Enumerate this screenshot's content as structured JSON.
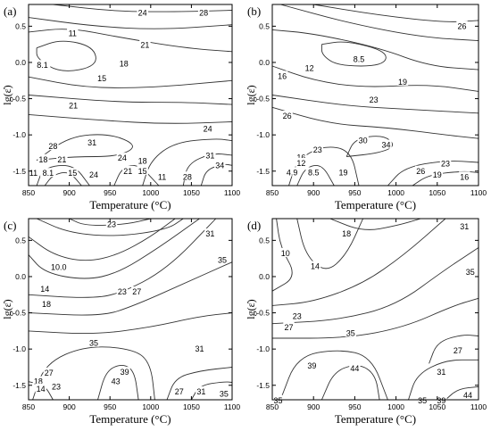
{
  "chart_data": [
    {
      "type": "contour",
      "panel_label": "(a)",
      "xlabel": "Temperature (°C)",
      "ylabel": "lg(ε̇)",
      "xlim": [
        850,
        1100
      ],
      "ylim": [
        -1.7,
        0.8
      ],
      "xticks": [
        "850",
        "900",
        "950",
        "1000",
        "1050",
        "1100"
      ],
      "yticks": [
        "-1.5",
        "-1.0",
        "-0.5",
        "0.0",
        "0.5"
      ],
      "contour_labels": [
        {
          "text": "24",
          "x": 990,
          "y": 0.68
        },
        {
          "text": "28",
          "x": 1065,
          "y": 0.68
        },
        {
          "text": "11",
          "x": 904,
          "y": 0.4
        },
        {
          "text": "21",
          "x": 993,
          "y": 0.24
        },
        {
          "text": "8.1",
          "x": 867,
          "y": -0.04
        },
        {
          "text": "18",
          "x": 967,
          "y": -0.02
        },
        {
          "text": "15",
          "x": 940,
          "y": -0.22
        },
        {
          "text": "21",
          "x": 905,
          "y": -0.6
        },
        {
          "text": "24",
          "x": 1070,
          "y": -0.92
        },
        {
          "text": "28",
          "x": 880,
          "y": -1.16
        },
        {
          "text": "31",
          "x": 928,
          "y": -1.11
        },
        {
          "text": "18",
          "x": 868,
          "y": -1.34
        },
        {
          "text": "21",
          "x": 891,
          "y": -1.34
        },
        {
          "text": "24",
          "x": 965,
          "y": -1.32
        },
        {
          "text": "18",
          "x": 990,
          "y": -1.36
        },
        {
          "text": "31",
          "x": 1073,
          "y": -1.29
        },
        {
          "text": "34",
          "x": 1085,
          "y": -1.42
        },
        {
          "text": "11",
          "x": 856,
          "y": -1.53
        },
        {
          "text": "8.1",
          "x": 874,
          "y": -1.53
        },
        {
          "text": "15",
          "x": 904,
          "y": -1.53
        },
        {
          "text": "24",
          "x": 930,
          "y": -1.55
        },
        {
          "text": "21",
          "x": 972,
          "y": -1.5
        },
        {
          "text": "15",
          "x": 990,
          "y": -1.5
        },
        {
          "text": "11",
          "x": 1014,
          "y": -1.58
        },
        {
          "text": "28",
          "x": 1045,
          "y": -1.58
        }
      ]
    },
    {
      "type": "contour",
      "panel_label": "(b)",
      "xlabel": "Temperature (°C)",
      "ylabel": "lg(ε̇)",
      "xlim": [
        850,
        1100
      ],
      "ylim": [
        -1.7,
        0.8
      ],
      "xticks": [
        "850",
        "900",
        "950",
        "1000",
        "1050",
        "1100"
      ],
      "yticks": [
        "-1.5",
        "-1.0",
        "-0.5",
        "0.0",
        "0.5"
      ],
      "contour_labels": [
        {
          "text": "26",
          "x": 1080,
          "y": 0.5
        },
        {
          "text": "8.5",
          "x": 955,
          "y": 0.04
        },
        {
          "text": "12",
          "x": 895,
          "y": -0.08
        },
        {
          "text": "16",
          "x": 862,
          "y": -0.19
        },
        {
          "text": "19",
          "x": 1008,
          "y": -0.27
        },
        {
          "text": "23",
          "x": 973,
          "y": -0.52
        },
        {
          "text": "26",
          "x": 868,
          "y": -0.74
        },
        {
          "text": "30",
          "x": 960,
          "y": -1.08
        },
        {
          "text": "34",
          "x": 988,
          "y": -1.14
        },
        {
          "text": "23",
          "x": 905,
          "y": -1.21
        },
        {
          "text": "16",
          "x": 885,
          "y": -1.31
        },
        {
          "text": "12",
          "x": 885,
          "y": -1.39
        },
        {
          "text": "23",
          "x": 1060,
          "y": -1.4
        },
        {
          "text": "26",
          "x": 1030,
          "y": -1.5
        },
        {
          "text": "4.9",
          "x": 874,
          "y": -1.52
        },
        {
          "text": "8.5",
          "x": 900,
          "y": -1.52
        },
        {
          "text": "19",
          "x": 936,
          "y": -1.52
        },
        {
          "text": "19",
          "x": 1050,
          "y": -1.55
        },
        {
          "text": "16",
          "x": 1083,
          "y": -1.58
        }
      ]
    },
    {
      "type": "contour",
      "panel_label": "(c)",
      "xlabel": "Temperature (°C)",
      "ylabel": "lg(ε̇)",
      "xlim": [
        850,
        1100
      ],
      "ylim": [
        -1.7,
        0.8
      ],
      "xticks": [
        "850",
        "900",
        "950",
        "1000",
        "1050",
        "1100"
      ],
      "yticks": [
        "-1.5",
        "-1.0",
        "-0.5",
        "0.0",
        "0.5"
      ],
      "contour_labels": [
        {
          "text": "23",
          "x": 952,
          "y": 0.72
        },
        {
          "text": "31",
          "x": 1073,
          "y": 0.59
        },
        {
          "text": "10.0",
          "x": 887,
          "y": 0.13
        },
        {
          "text": "35",
          "x": 1088,
          "y": 0.23
        },
        {
          "text": "14",
          "x": 870,
          "y": -0.17
        },
        {
          "text": "23",
          "x": 965,
          "y": -0.21
        },
        {
          "text": "27",
          "x": 983,
          "y": -0.21
        },
        {
          "text": "18",
          "x": 872,
          "y": -0.38
        },
        {
          "text": "35",
          "x": 930,
          "y": -0.92
        },
        {
          "text": "31",
          "x": 1060,
          "y": -1.0
        },
        {
          "text": "39",
          "x": 968,
          "y": -1.32
        },
        {
          "text": "27",
          "x": 875,
          "y": -1.33
        },
        {
          "text": "43",
          "x": 957,
          "y": -1.45
        },
        {
          "text": "18",
          "x": 862,
          "y": -1.45
        },
        {
          "text": "23",
          "x": 884,
          "y": -1.52
        },
        {
          "text": "14",
          "x": 865,
          "y": -1.55
        },
        {
          "text": "27",
          "x": 1035,
          "y": -1.59
        },
        {
          "text": "31",
          "x": 1062,
          "y": -1.59
        },
        {
          "text": "35",
          "x": 1090,
          "y": -1.62
        }
      ]
    },
    {
      "type": "contour",
      "panel_label": "(d)",
      "xlabel": "Temperature (°C)",
      "ylabel": "lg(ε̇)",
      "xlim": [
        850,
        1100
      ],
      "ylim": [
        -1.7,
        0.8
      ],
      "xticks": [
        "850",
        "900",
        "950",
        "1000",
        "1050",
        "1100"
      ],
      "yticks": [
        "-1.5",
        "-1.0",
        "-0.5",
        "0.0",
        "0.5"
      ],
      "contour_labels": [
        {
          "text": "31",
          "x": 1083,
          "y": 0.69
        },
        {
          "text": "18",
          "x": 940,
          "y": 0.59
        },
        {
          "text": "10",
          "x": 866,
          "y": 0.32
        },
        {
          "text": "14",
          "x": 902,
          "y": 0.14
        },
        {
          "text": "35",
          "x": 1090,
          "y": 0.06
        },
        {
          "text": "23",
          "x": 880,
          "y": -0.55
        },
        {
          "text": "27",
          "x": 870,
          "y": -0.7
        },
        {
          "text": "35",
          "x": 945,
          "y": -0.78
        },
        {
          "text": "27",
          "x": 1075,
          "y": -1.02
        },
        {
          "text": "39",
          "x": 898,
          "y": -1.23
        },
        {
          "text": "44",
          "x": 950,
          "y": -1.27
        },
        {
          "text": "31",
          "x": 1055,
          "y": -1.32
        },
        {
          "text": "35",
          "x": 857,
          "y": -1.71
        },
        {
          "text": "35",
          "x": 1032,
          "y": -1.71
        },
        {
          "text": "39",
          "x": 1055,
          "y": -1.71
        },
        {
          "text": "44",
          "x": 1087,
          "y": -1.64
        }
      ]
    }
  ]
}
